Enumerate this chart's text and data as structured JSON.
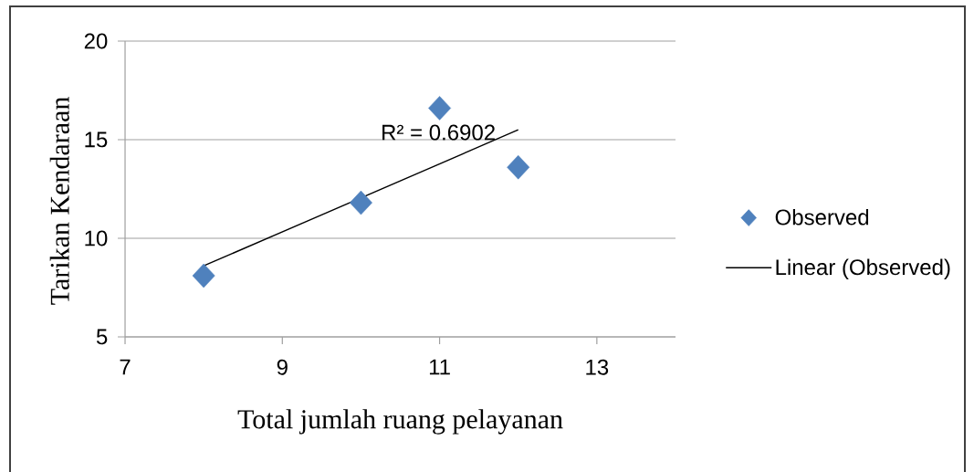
{
  "chart_data": {
    "type": "scatter",
    "xlabel": "Total jumlah ruang pelayanan",
    "ylabel": "Tarikan Kendaraan",
    "xlim": [
      7,
      14
    ],
    "ylim": [
      5,
      20
    ],
    "xticks": [
      7,
      9,
      11,
      13
    ],
    "yticks": [
      5,
      10,
      15,
      20
    ],
    "grid": "y",
    "legend": "right",
    "marker": "diamond",
    "series": [
      {
        "name": "Observed",
        "color": "#4f81bd",
        "x": [
          8,
          10,
          11,
          12
        ],
        "values": [
          8.1,
          11.8,
          16.6,
          13.6
        ]
      },
      {
        "name": "Linear (Observed)",
        "type": "line",
        "color": "#000000",
        "x": [
          8,
          12
        ],
        "values": [
          8.6,
          15.5
        ],
        "marker": "none",
        "line_style": "solid"
      }
    ],
    "annotations": [
      "R² = 0.6902"
    ]
  }
}
